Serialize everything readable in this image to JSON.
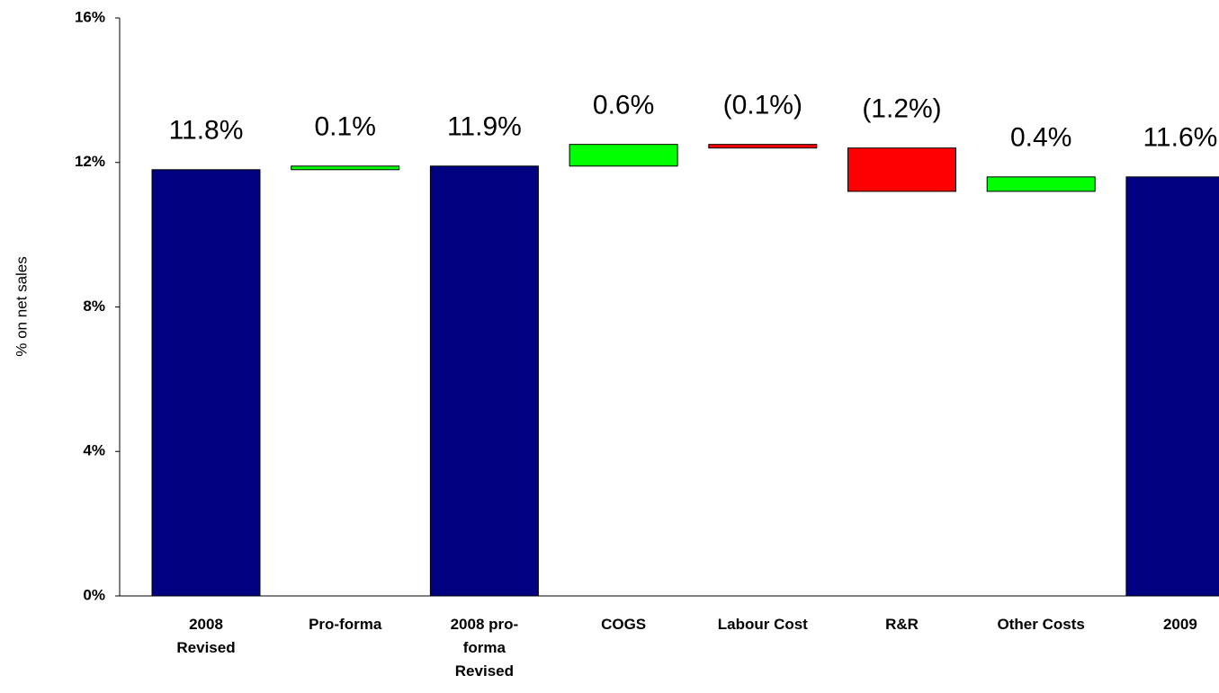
{
  "chart_data": {
    "type": "waterfall",
    "y_label": "% on net sales",
    "categories": [
      "2008\nRevised",
      "Pro-forma",
      "2008 pro-\nforma\nRevised",
      "COGS",
      "Labour Cost",
      "R&R",
      "Other Costs",
      "2009"
    ],
    "values": [
      11.8,
      0.1,
      11.9,
      0.6,
      -0.1,
      -1.2,
      0.4,
      11.6
    ],
    "value_labels": [
      "11.8%",
      "0.1%",
      "11.9%",
      "0.6%",
      "(0.1%)",
      "(1.2%)",
      "0.4%",
      "11.6%"
    ],
    "is_total": [
      true,
      false,
      true,
      false,
      false,
      false,
      false,
      true
    ],
    "total_color": "#000080",
    "increase_color": "#00ff00",
    "decrease_color": "#ff0000",
    "ylim": [
      0,
      16
    ],
    "yticks": [
      {
        "value": 0,
        "label": "0%"
      },
      {
        "value": 4,
        "label": "4%"
      },
      {
        "value": 8,
        "label": "8%"
      },
      {
        "value": 12,
        "label": "12%"
      },
      {
        "value": 16,
        "label": "16%"
      }
    ],
    "grid": false
  }
}
